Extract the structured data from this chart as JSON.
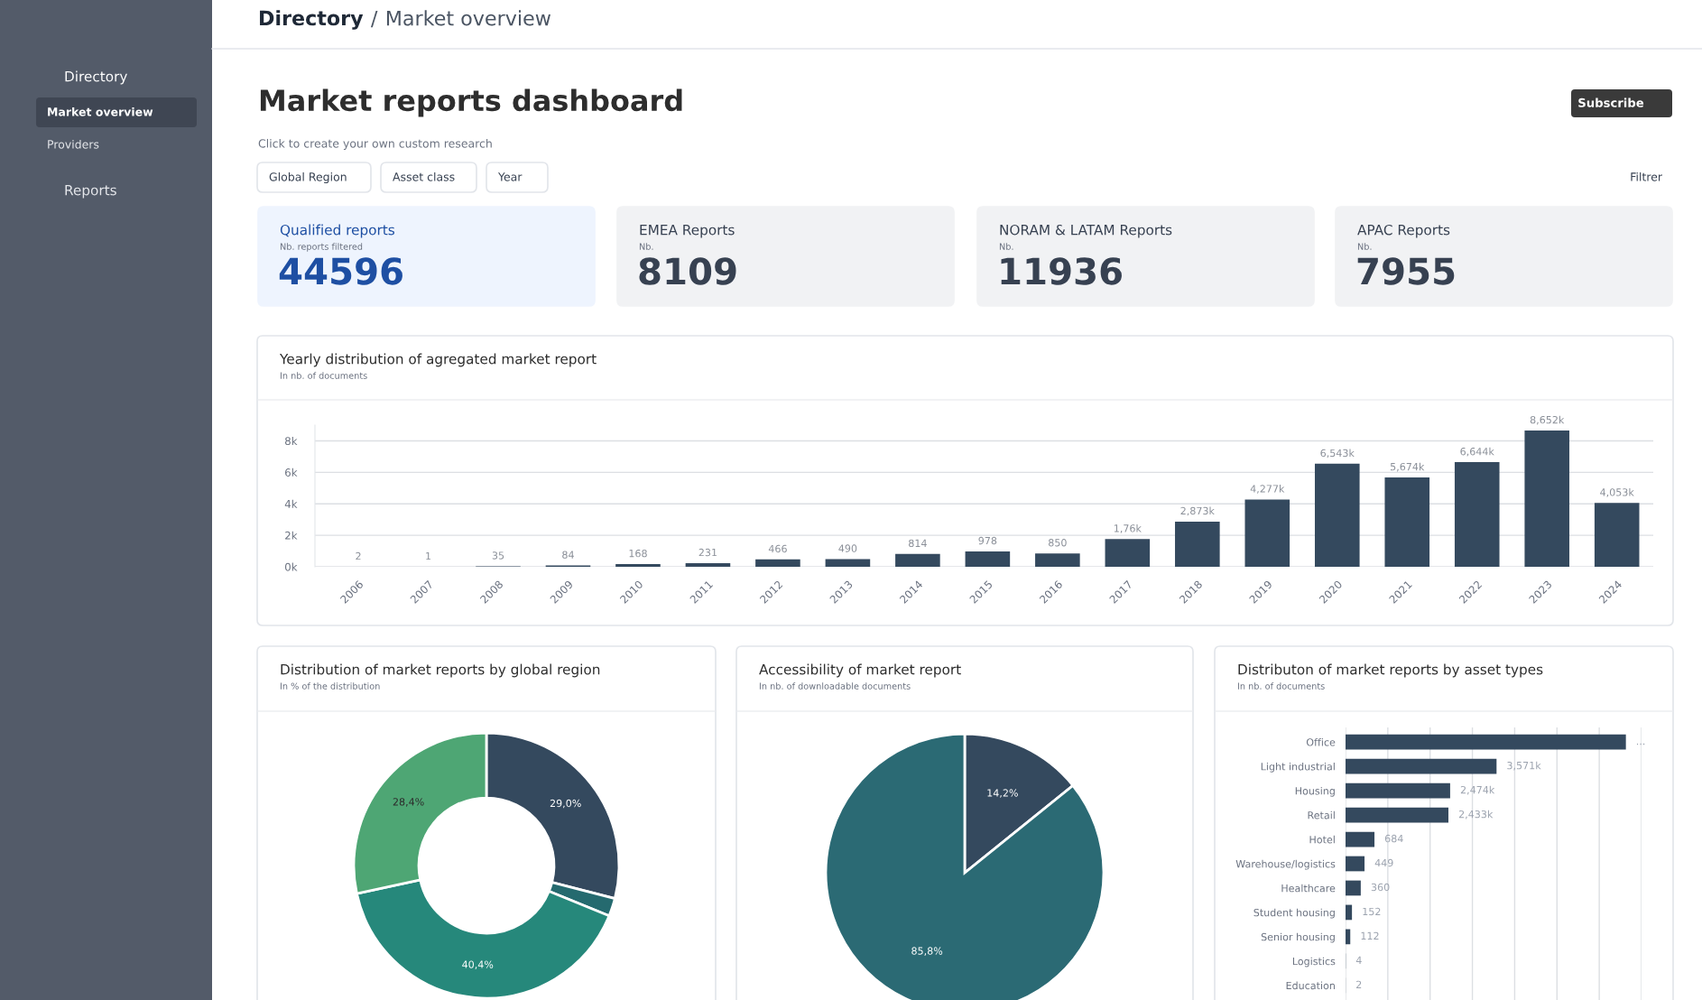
{
  "chart_data": [
    {
      "type": "other",
      "title": "Market reports dashboard",
      "subtitle": "Click to create your own custom research",
      "annotations": [
        "Directory",
        "Market overview",
        "Providers",
        "Reports",
        "Directory",
        "/",
        "Market overview",
        "Global Region",
        "Asset class",
        "Year",
        "Filtrer",
        "Subscribe"
      ]
    },
    {
      "type": "other",
      "title": "Qualified reports",
      "subtitle": "Nb. reports filtered",
      "values": [
        44596
      ],
      "data_labels": true
    },
    {
      "type": "other",
      "title": "EMEA Reports",
      "subtitle": "Nb.",
      "values": [
        8109
      ],
      "data_labels": true
    },
    {
      "type": "other",
      "title": "NORAM & LATAM Reports",
      "subtitle": "Nb.",
      "values": [
        11936
      ],
      "data_labels": true
    },
    {
      "type": "other",
      "title": "APAC Reports",
      "subtitle": "Nb.",
      "values": [
        7955
      ],
      "data_labels": true
    },
    {
      "type": "bar",
      "title": "Yearly distribution of agregated market report",
      "subtitle": "In nb. of documents",
      "categories": [
        "2006",
        "2007",
        "2008",
        "2009",
        "2010",
        "2011",
        "2012",
        "2013",
        "2014",
        "2015",
        "2016",
        "2017",
        "2018",
        "2019",
        "2020",
        "2021",
        "2022",
        "2023",
        "2024"
      ],
      "values": [
        2,
        1,
        35,
        84,
        168,
        231,
        466,
        490,
        814,
        978,
        850,
        1760,
        2873,
        4277,
        6543,
        5674,
        6644,
        8652,
        4053
      ],
      "value_labels": [
        "2",
        "1",
        "35",
        "84",
        "168",
        "231",
        "466",
        "490",
        "814",
        "978",
        "850",
        "1,76k",
        "2,873k",
        "4,277k",
        "6,543k",
        "5,674k",
        "6,644k",
        "8,652k",
        "4,053k"
      ],
      "color": "#34495e",
      "ylim": [
        0,
        9000
      ],
      "yticks": [
        {
          "value": 0,
          "label": "0k"
        },
        {
          "value": 2000,
          "label": "2k"
        },
        {
          "value": 4000,
          "label": "4k"
        },
        {
          "value": 6000,
          "label": "6k"
        },
        {
          "value": 8000,
          "label": "8k"
        }
      ],
      "grid": "y"
    },
    {
      "type": "donut",
      "title": "Distribution of market reports by global region",
      "subtitle": "In % of the distribution",
      "categories": [
        null,
        null,
        null,
        null
      ],
      "values": [
        29.0,
        2.2,
        40.4,
        28.4
      ],
      "colors": [
        "#34495e",
        "#256a6f",
        "#26887b",
        "#4ea674"
      ],
      "value_labels": [
        "29,0%",
        null,
        "40,4%",
        "28,4%"
      ]
    },
    {
      "type": "pie",
      "title": "Accessibility of market report",
      "subtitle": "In nb. of downloadable documents",
      "categories": [
        null,
        null
      ],
      "values": [
        14.2,
        85.8
      ],
      "colors": [
        "#34495e",
        "#2b6a74"
      ],
      "value_labels": [
        "14,2%",
        "85,8%"
      ]
    },
    {
      "type": "bar",
      "orientation": "horizontal",
      "title": "Distributon of market reports by asset types",
      "subtitle": "In nb. of documents",
      "categories": [
        "Office",
        "Light industrial",
        "Housing",
        "Retail",
        "Hotel",
        "Warehouse/logistics",
        "Healthcare",
        "Student housing",
        "Senior housing",
        "Logistics",
        "Education"
      ],
      "values": [
        6630,
        3571,
        2474,
        2433,
        684,
        449,
        360,
        152,
        112,
        4,
        2
      ],
      "value_labels": [
        "...",
        "3,571k",
        "2,474k",
        "2,433k",
        "684",
        "449",
        "360",
        "152",
        "112",
        "4",
        "2"
      ],
      "color": "#34495e",
      "xlim": [
        0,
        7000
      ],
      "xticks": [
        {
          "value": 0,
          "label": null
        },
        {
          "value": 1000,
          "label": null
        },
        {
          "value": 2000,
          "label": null
        },
        {
          "value": 3000,
          "label": null
        },
        {
          "value": 4000,
          "label": null
        },
        {
          "value": 5000,
          "label": null
        },
        {
          "value": 6000,
          "label": null
        },
        {
          "value": 7000,
          "label": null
        }
      ],
      "grid": "x"
    }
  ]
}
